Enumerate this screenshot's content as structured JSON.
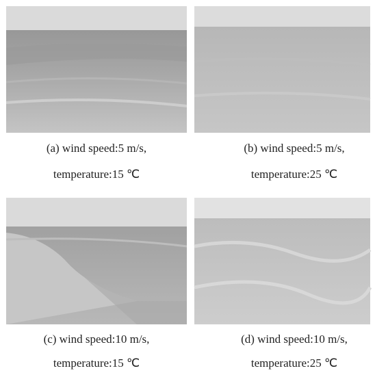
{
  "figure": {
    "panels": [
      {
        "caption": [
          "(a) wind speed:5 m/s,",
          "temperature:15 ℃"
        ]
      },
      {
        "caption": [
          "(b) wind speed:5 m/s,",
          "temperature:25 ℃"
        ]
      },
      {
        "caption": [
          "(c) wind speed:10 m/s,",
          "temperature:15 ℃"
        ]
      },
      {
        "caption": [
          "(d) wind speed:10 m/s,",
          "temperature:25 ℃"
        ]
      }
    ]
  }
}
